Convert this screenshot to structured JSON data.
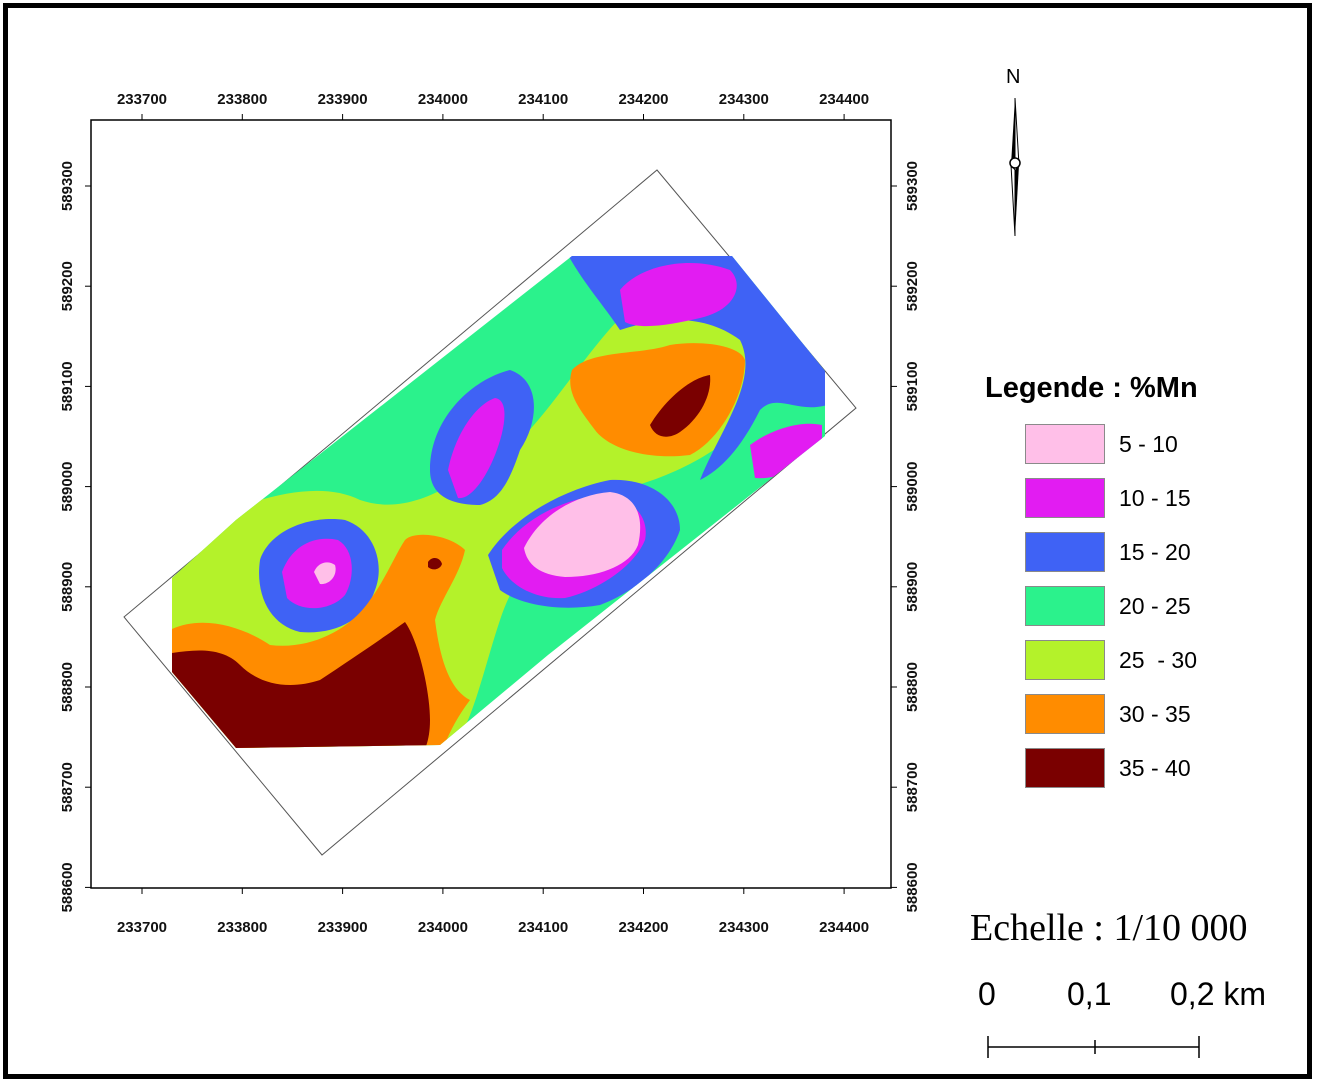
{
  "map": {
    "x_ticks": [
      "233700",
      "233800",
      "233900",
      "234000",
      "234100",
      "234200",
      "234300",
      "234400"
    ],
    "y_ticks": [
      "589300",
      "589200",
      "589100",
      "589000",
      "588900",
      "588800",
      "588700",
      "588600"
    ],
    "north_label": "N"
  },
  "legend": {
    "title": "Legende : %Mn",
    "items": [
      {
        "label": "5 - 10",
        "color": "#ffbfe8"
      },
      {
        "label": "10 - 15",
        "color": "#e21cf2"
      },
      {
        "label": "15 - 20",
        "color": "#3f62f5"
      },
      {
        "label": "20 - 25",
        "color": "#2bf28c"
      },
      {
        "label": "25  - 30",
        "color": "#b4f22a"
      },
      {
        "label": "30 - 35",
        "color": "#ff8c00"
      },
      {
        "label": "35 - 40",
        "color": "#7a0000"
      }
    ]
  },
  "scale": {
    "title": "Echelle : 1/10 000",
    "labels": [
      "0",
      "0,1",
      "0,2 km"
    ]
  },
  "chart_data": {
    "type": "heatmap",
    "variable": "%Mn",
    "classes": [
      {
        "range": [
          5,
          10
        ],
        "color": "#ffbfe8"
      },
      {
        "range": [
          10,
          15
        ],
        "color": "#e21cf2"
      },
      {
        "range": [
          15,
          20
        ],
        "color": "#3f62f5"
      },
      {
        "range": [
          20,
          25
        ],
        "color": "#2bf28c"
      },
      {
        "range": [
          25,
          30
        ],
        "color": "#b4f22a"
      },
      {
        "range": [
          30,
          35
        ],
        "color": "#ff8c00"
      },
      {
        "range": [
          35,
          40
        ],
        "color": "#7a0000"
      }
    ],
    "xlim": [
      233650,
      234450
    ],
    "ylim": [
      588580,
      589370
    ]
  }
}
